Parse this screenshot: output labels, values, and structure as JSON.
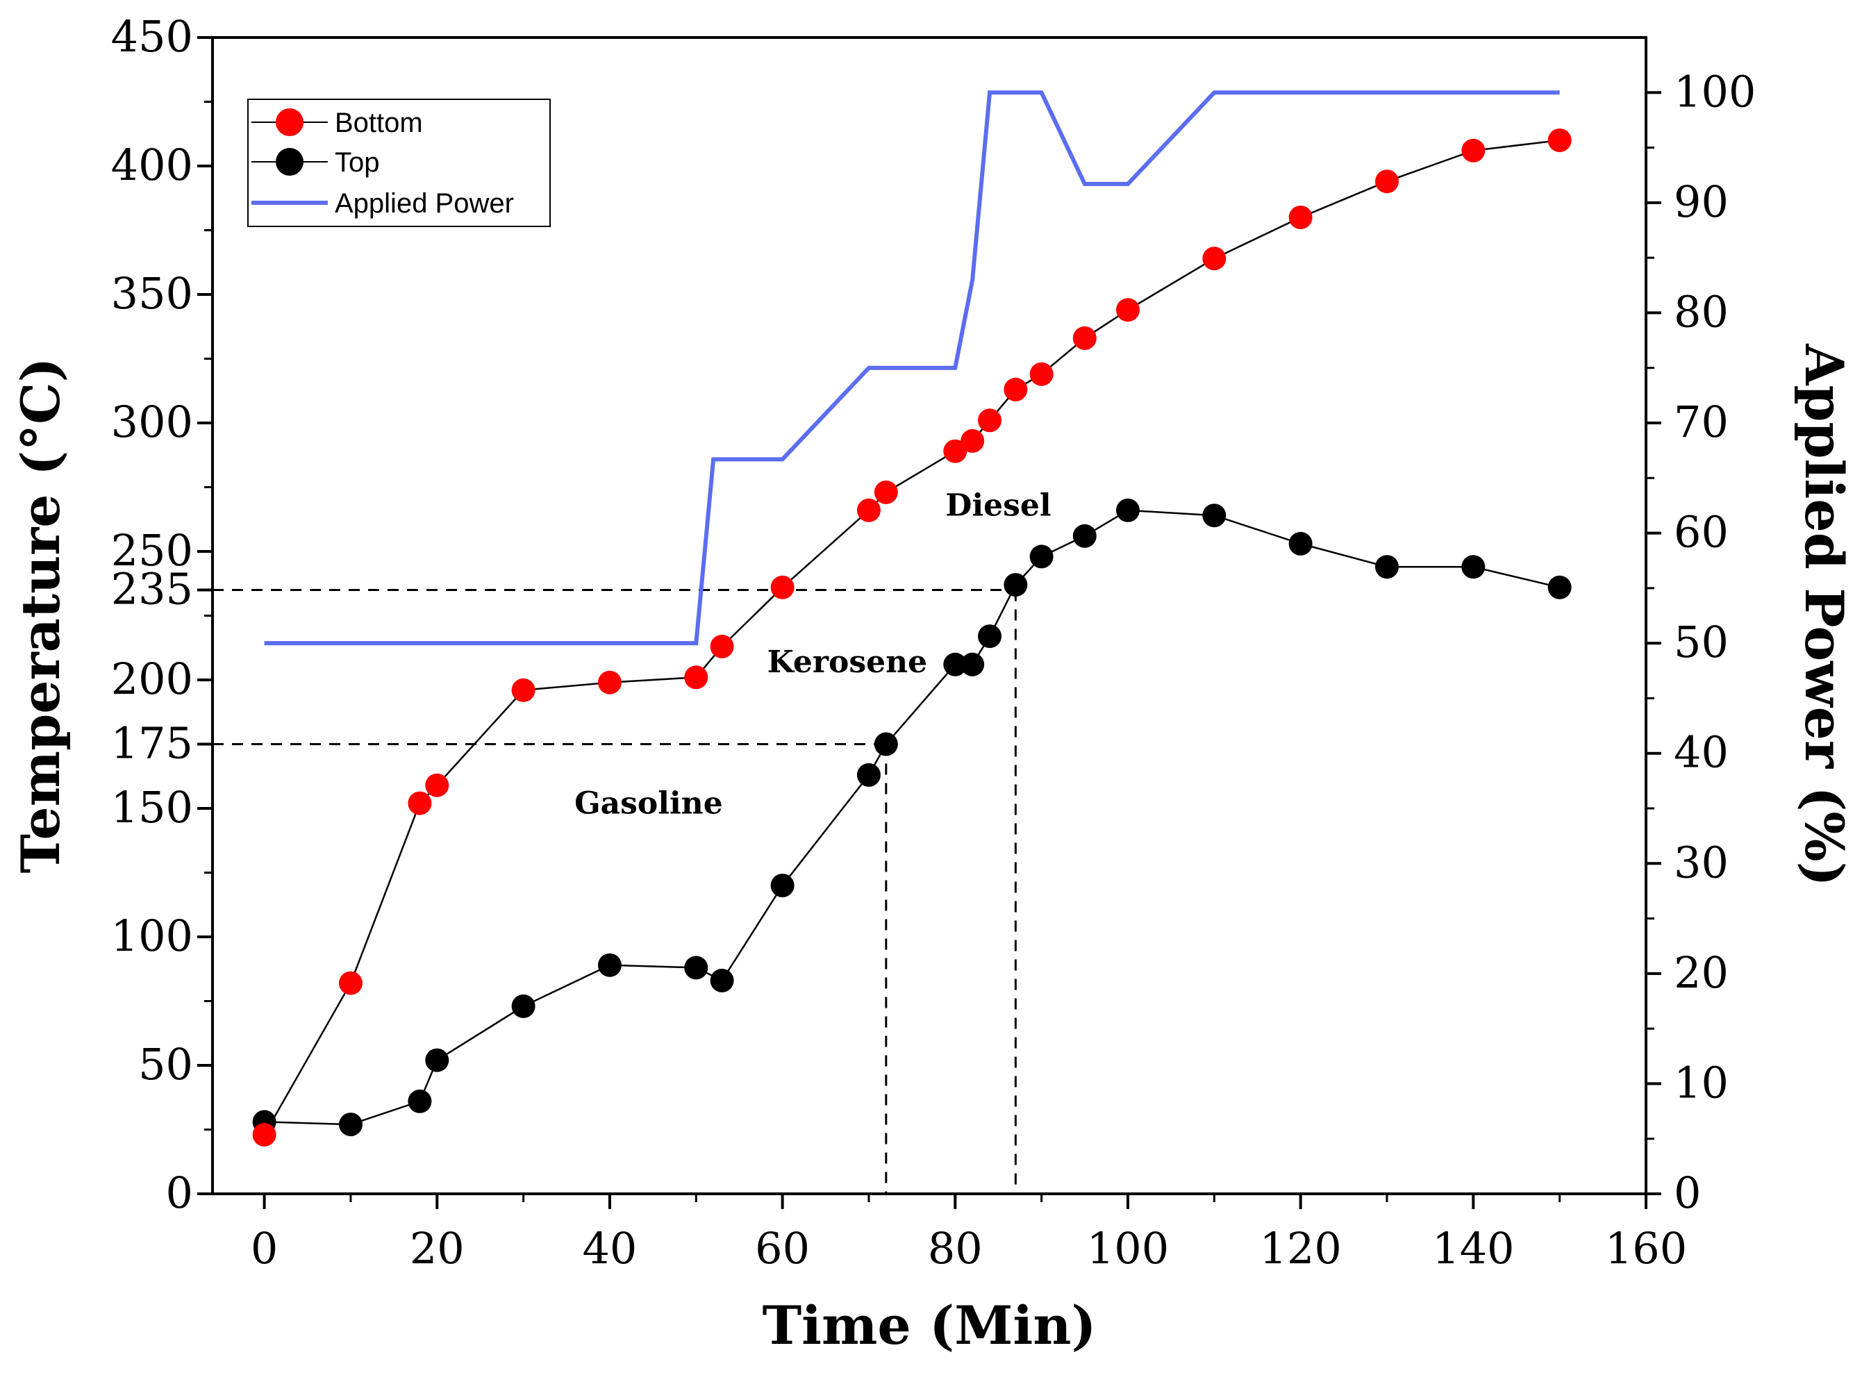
{
  "chart_data": {
    "type": "line",
    "title": "",
    "xlabel": "Time (Min)",
    "ylabel": "Temperature (°C)",
    "y2label": "Applied Power (%)",
    "xlim": [
      -6,
      160
    ],
    "ylim": [
      0,
      450
    ],
    "y2lim": [
      0,
      105
    ],
    "x_ticks": [
      0,
      20,
      40,
      60,
      80,
      100,
      120,
      140,
      160
    ],
    "y_ticks": [
      0,
      50,
      100,
      150,
      175,
      200,
      235,
      250,
      300,
      350,
      400,
      450
    ],
    "y2_ticks": [
      0,
      10,
      20,
      30,
      40,
      50,
      60,
      70,
      80,
      90,
      100
    ],
    "legend_position": "top-left",
    "series": [
      {
        "name": "Bottom",
        "color": "#ff0000",
        "axis": "left",
        "marker": "circle",
        "x": [
          0,
          10,
          18,
          20,
          30,
          40,
          50,
          53,
          60,
          70,
          72,
          80,
          82,
          84,
          87,
          90,
          95,
          100,
          110,
          120,
          130,
          140,
          150
        ],
        "values": [
          23,
          82,
          152,
          159,
          196,
          199,
          201,
          213,
          236,
          266,
          273,
          289,
          293,
          301,
          313,
          319,
          333,
          344,
          364,
          380,
          394,
          406,
          410
        ]
      },
      {
        "name": "Top",
        "color": "#000000",
        "axis": "left",
        "marker": "circle",
        "x": [
          0,
          10,
          18,
          20,
          30,
          40,
          50,
          53,
          60,
          70,
          72,
          80,
          82,
          84,
          87,
          90,
          95,
          100,
          110,
          120,
          130,
          140,
          150
        ],
        "values": [
          28,
          27,
          36,
          52,
          73,
          89,
          88,
          83,
          120,
          163,
          175,
          206,
          206,
          217,
          237,
          248,
          256,
          266,
          264,
          253,
          244,
          244,
          236
        ]
      },
      {
        "name": "Applied Power",
        "color": "#5b6df0",
        "axis": "right",
        "marker": "none",
        "x": [
          0,
          50,
          52,
          60,
          70,
          80,
          82,
          84,
          90,
          95,
          100,
          110,
          150
        ],
        "values": [
          50,
          50,
          66.7,
          66.7,
          75,
          75,
          83,
          100,
          100,
          91.7,
          91.7,
          100,
          100
        ]
      }
    ],
    "reference_lines": [
      {
        "temperature": 235,
        "time_end": 87
      },
      {
        "temperature": 175,
        "time_end": 72
      }
    ],
    "annotations": [
      {
        "text": "Diesel",
        "x": 85,
        "y": 268
      },
      {
        "text": "Kerosene",
        "x": 67.5,
        "y": 207
      },
      {
        "text": "Gasoline",
        "x": 44.5,
        "y": 152
      }
    ]
  }
}
